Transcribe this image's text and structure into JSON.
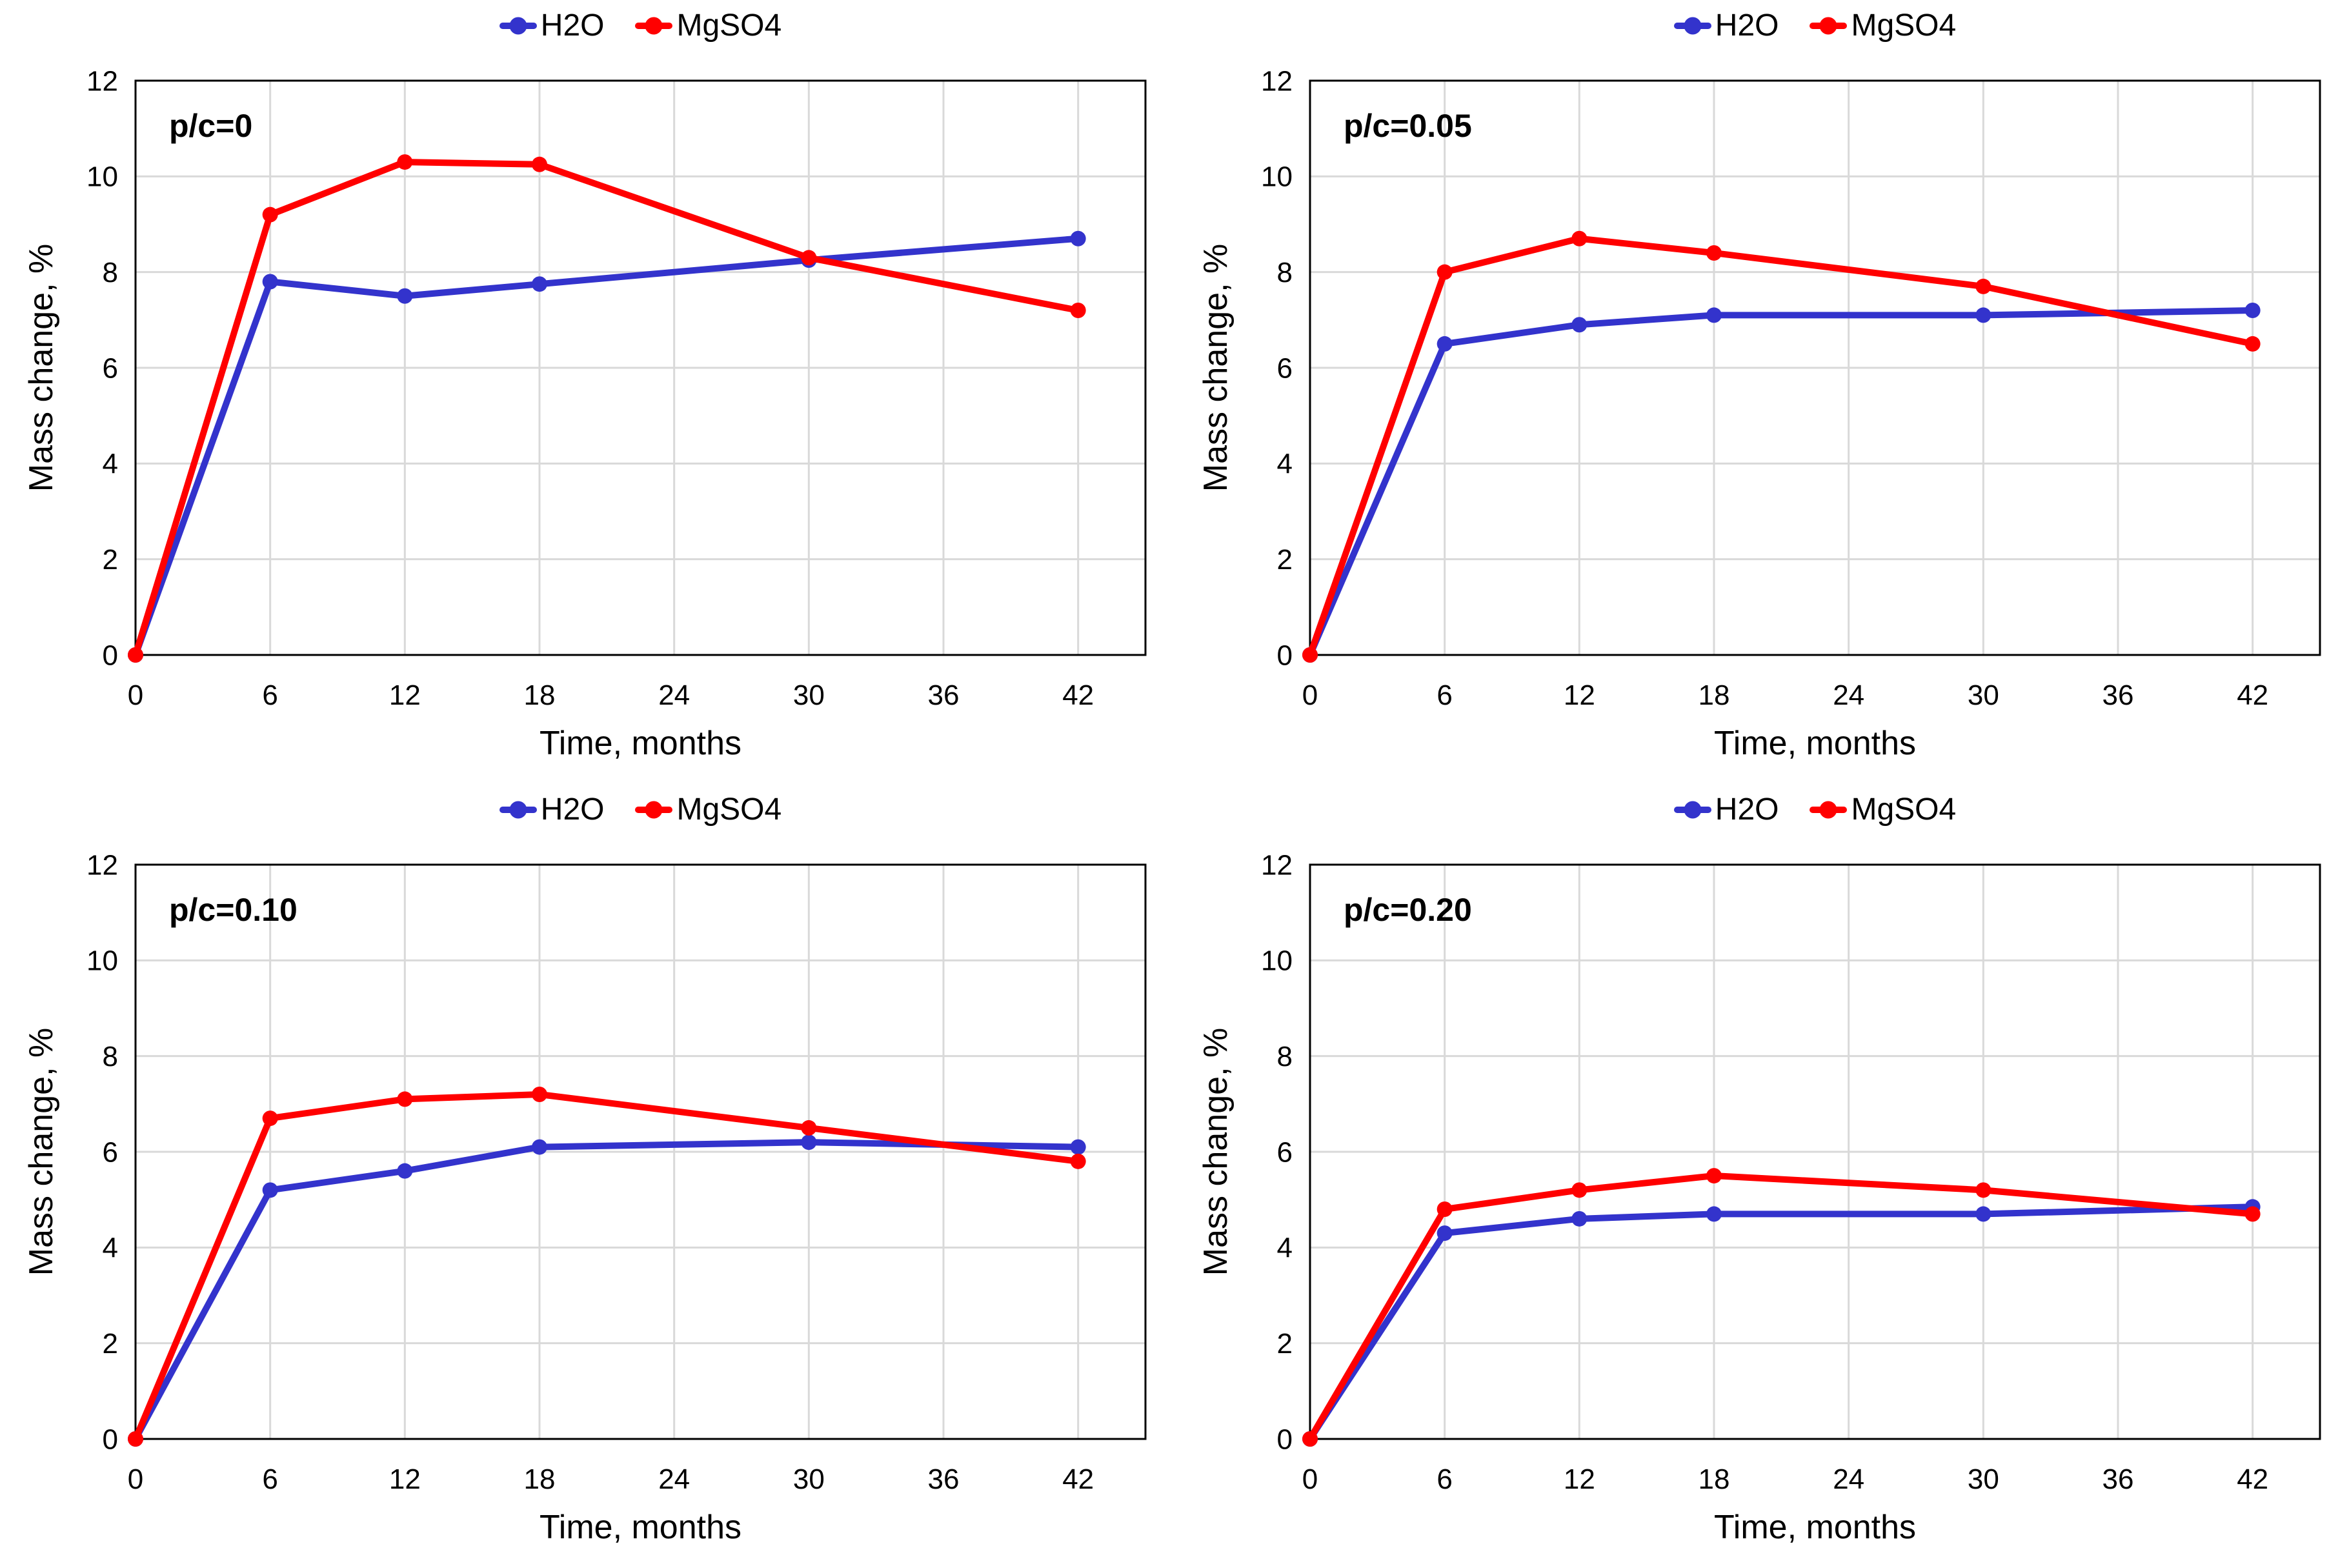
{
  "figure": {
    "background": "#FFFFFF"
  },
  "colors": {
    "h2o": "#3333CC",
    "mgso4": "#FF0000",
    "grid": "#D9D9D9",
    "axis": "#000000",
    "text": "#000000"
  },
  "chart_data": [
    {
      "type": "line",
      "annotation": "p/c=0",
      "xlabel": "Time, months",
      "ylabel": "Mass change, %",
      "x": [
        0,
        6,
        12,
        18,
        30,
        42
      ],
      "series": [
        {
          "name": "H2O",
          "color": "#3333CC",
          "values": [
            0,
            7.8,
            7.5,
            7.75,
            8.25,
            8.7
          ]
        },
        {
          "name": "MgSO4",
          "color": "#FF0000",
          "values": [
            0,
            9.2,
            10.3,
            10.25,
            8.3,
            7.2
          ]
        }
      ],
      "xlim": [
        0,
        45
      ],
      "ylim": [
        0,
        12
      ],
      "xticks": [
        0,
        6,
        12,
        18,
        24,
        30,
        36,
        42
      ],
      "yticks": [
        0,
        2,
        4,
        6,
        8,
        10,
        12
      ],
      "grid": true,
      "legend_position": "top"
    },
    {
      "type": "line",
      "annotation": "p/c=0.05",
      "xlabel": "Time, months",
      "ylabel": "Mass change, %",
      "x": [
        0,
        6,
        12,
        18,
        30,
        42
      ],
      "series": [
        {
          "name": "H2O",
          "color": "#3333CC",
          "values": [
            0,
            6.5,
            6.9,
            7.1,
            7.1,
            7.2
          ]
        },
        {
          "name": "MgSO4",
          "color": "#FF0000",
          "values": [
            0,
            8.0,
            8.7,
            8.4,
            7.7,
            6.5
          ]
        }
      ],
      "xlim": [
        0,
        45
      ],
      "ylim": [
        0,
        12
      ],
      "xticks": [
        0,
        6,
        12,
        18,
        24,
        30,
        36,
        42
      ],
      "yticks": [
        0,
        2,
        4,
        6,
        8,
        10,
        12
      ],
      "grid": true,
      "legend_position": "top"
    },
    {
      "type": "line",
      "annotation": "p/c=0.10",
      "xlabel": "Time, months",
      "ylabel": "Mass change, %",
      "x": [
        0,
        6,
        12,
        18,
        30,
        42
      ],
      "series": [
        {
          "name": "H2O",
          "color": "#3333CC",
          "values": [
            0,
            5.2,
            5.6,
            6.1,
            6.2,
            6.1
          ]
        },
        {
          "name": "MgSO4",
          "color": "#FF0000",
          "values": [
            0,
            6.7,
            7.1,
            7.2,
            6.5,
            5.8
          ]
        }
      ],
      "xlim": [
        0,
        45
      ],
      "ylim": [
        0,
        12
      ],
      "xticks": [
        0,
        6,
        12,
        18,
        24,
        30,
        36,
        42
      ],
      "yticks": [
        0,
        2,
        4,
        6,
        8,
        10,
        12
      ],
      "grid": true,
      "legend_position": "top"
    },
    {
      "type": "line",
      "annotation": "p/c=0.20",
      "xlabel": "Time, months",
      "ylabel": "Mass change, %",
      "x": [
        0,
        6,
        12,
        18,
        30,
        42
      ],
      "series": [
        {
          "name": "H2O",
          "color": "#3333CC",
          "values": [
            0,
            4.3,
            4.6,
            4.7,
            4.7,
            4.85
          ]
        },
        {
          "name": "MgSO4",
          "color": "#FF0000",
          "values": [
            0,
            4.8,
            5.2,
            5.5,
            5.2,
            4.7
          ]
        }
      ],
      "xlim": [
        0,
        45
      ],
      "ylim": [
        0,
        12
      ],
      "xticks": [
        0,
        6,
        12,
        18,
        24,
        30,
        36,
        42
      ],
      "yticks": [
        0,
        2,
        4,
        6,
        8,
        10,
        12
      ],
      "grid": true,
      "legend_position": "top"
    }
  ]
}
